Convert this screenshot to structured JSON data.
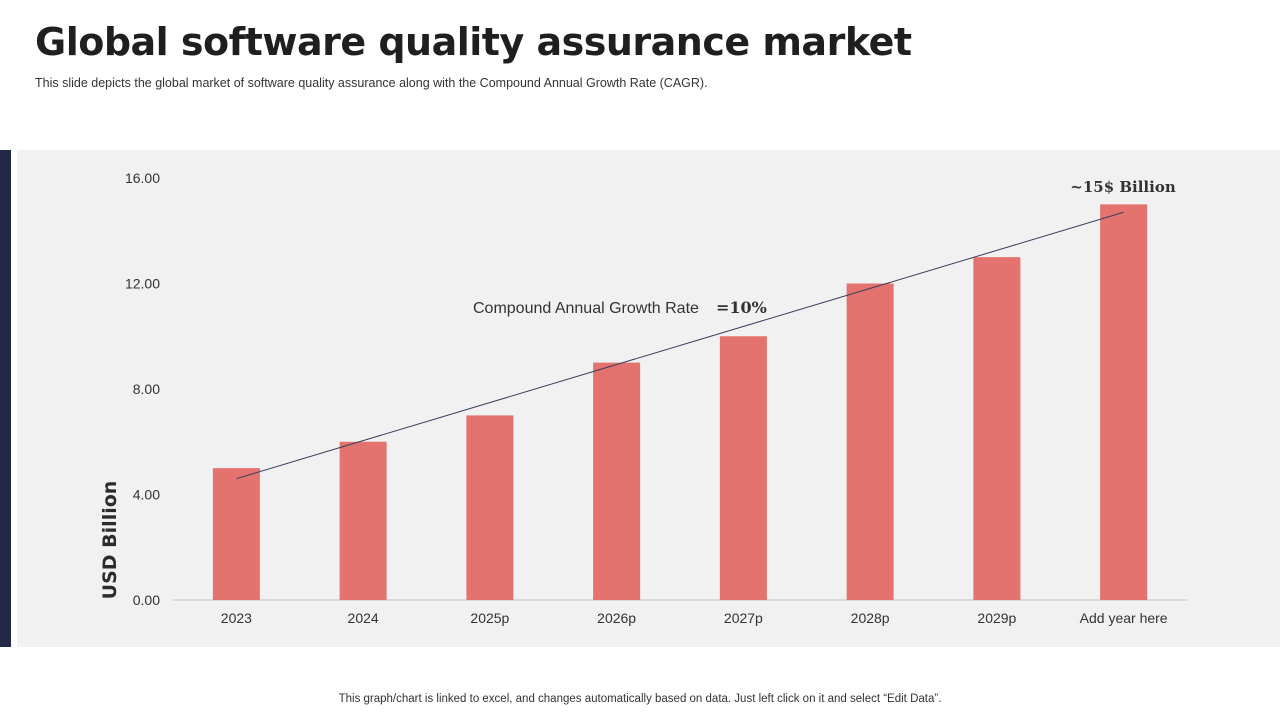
{
  "slide": {
    "title": "Global software quality assurance market",
    "subtitle": "This slide depicts the global market of software quality assurance along with the Compound  Annual Growth Rate (CAGR).",
    "footnote": "This graph/chart is linked to excel,  and changes automatically based on data. Just left click on it and select “Edit Data”."
  },
  "colors": {
    "bar": "#e4736f",
    "accent": "#232a48",
    "trend": "#3a3f5c",
    "panel": "#f1f1f1"
  },
  "chart_data": {
    "type": "bar",
    "categories": [
      "2023",
      "2024",
      "2025p",
      "2026p",
      "2027p",
      "2028p",
      "2029p",
      "Add year here"
    ],
    "values": [
      5,
      6,
      7,
      9,
      10,
      12,
      13,
      15
    ],
    "ylabel": "USD Billion",
    "xlabel": "",
    "ylim": [
      0,
      16
    ],
    "yticks": [
      0,
      4,
      8,
      12,
      16
    ],
    "ytick_labels": [
      "0.00",
      "4.00",
      "8.00",
      "12.00",
      "16.00"
    ],
    "grid": false,
    "trendline": {
      "from": [
        0,
        4.6
      ],
      "to": [
        7,
        14.7
      ]
    },
    "annotations": {
      "cagr_label": "Compound Annual Growth Rate",
      "cagr_value": "=10%",
      "end_label": "~15$ Billion"
    }
  }
}
